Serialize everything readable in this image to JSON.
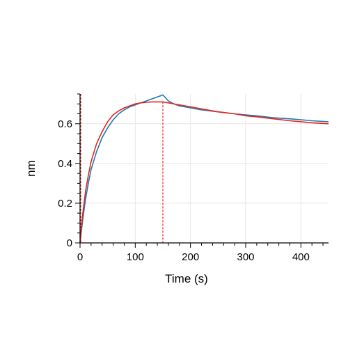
{
  "chart_data": {
    "type": "line",
    "title": "",
    "xlabel": "Time (s)",
    "ylabel": "nm",
    "xlim": [
      0,
      450
    ],
    "ylim": [
      0,
      0.75
    ],
    "x_ticks": [
      0,
      100,
      200,
      300,
      400
    ],
    "y_ticks": [
      0,
      0.2,
      0.4,
      0.6
    ],
    "x_tick_labels": [
      "0",
      "100",
      "200",
      "300",
      "400"
    ],
    "y_tick_labels": [
      "0",
      "0.2",
      "0.4",
      "0.6"
    ],
    "grid": true,
    "legend": "none",
    "dissociation_start_x": 150,
    "series": [
      {
        "color": "#1f77b4",
        "role": "measured",
        "x": [
          0,
          2,
          5,
          10,
          15,
          20,
          30,
          40,
          50,
          60,
          70,
          80,
          90,
          100,
          110,
          120,
          130,
          140,
          145,
          150,
          155,
          160,
          170,
          180,
          200,
          220,
          250,
          280,
          300,
          320,
          350,
          380,
          400,
          420,
          450
        ],
        "y": [
          0.0,
          0.05,
          0.12,
          0.22,
          0.3,
          0.37,
          0.46,
          0.53,
          0.58,
          0.62,
          0.65,
          0.67,
          0.685,
          0.695,
          0.705,
          0.715,
          0.725,
          0.735,
          0.74,
          0.745,
          0.73,
          0.715,
          0.7,
          0.69,
          0.68,
          0.67,
          0.66,
          0.65,
          0.645,
          0.64,
          0.63,
          0.625,
          0.62,
          0.615,
          0.61
        ]
      },
      {
        "color": "#e8231a",
        "role": "fit",
        "x": [
          0,
          2,
          5,
          10,
          15,
          20,
          30,
          40,
          50,
          60,
          70,
          80,
          90,
          100,
          110,
          120,
          130,
          140,
          150,
          160,
          170,
          180,
          200,
          220,
          250,
          280,
          300,
          320,
          350,
          380,
          400,
          420,
          450
        ],
        "y": [
          0.0,
          0.07,
          0.15,
          0.26,
          0.34,
          0.41,
          0.5,
          0.56,
          0.61,
          0.645,
          0.665,
          0.68,
          0.69,
          0.7,
          0.705,
          0.708,
          0.71,
          0.71,
          0.71,
          0.705,
          0.7,
          0.695,
          0.685,
          0.675,
          0.66,
          0.65,
          0.64,
          0.635,
          0.625,
          0.615,
          0.61,
          0.605,
          0.6
        ]
      }
    ]
  }
}
